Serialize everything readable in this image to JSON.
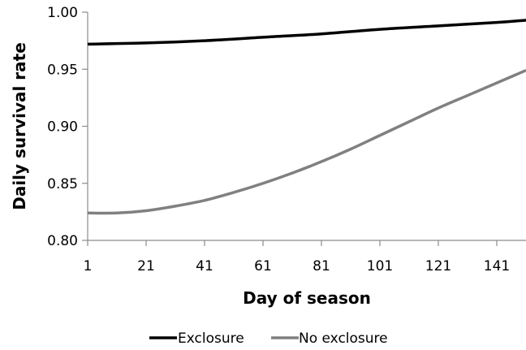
{
  "chart_data": {
    "type": "line",
    "xlabel": "Day of season",
    "ylabel": "Daily survival rate",
    "xlim": [
      1,
      151
    ],
    "ylim": [
      0.8,
      1.0
    ],
    "x_ticks": [
      1,
      21,
      41,
      61,
      81,
      101,
      121,
      141
    ],
    "y_ticks": [
      "0.80",
      "0.85",
      "0.90",
      "0.95",
      "1.00"
    ],
    "grid": false,
    "legend_position": "bottom-center",
    "series": [
      {
        "name": "Exclosure",
        "color": "#000000",
        "x": [
          1,
          21,
          41,
          61,
          81,
          101,
          121,
          141,
          151
        ],
        "y": [
          0.972,
          0.973,
          0.975,
          0.978,
          0.981,
          0.985,
          0.988,
          0.991,
          0.993
        ]
      },
      {
        "name": "No exclosure",
        "color": "#808080",
        "x": [
          1,
          11,
          21,
          31,
          41,
          51,
          61,
          71,
          81,
          91,
          101,
          111,
          121,
          131,
          141,
          151
        ],
        "y": [
          0.824,
          0.824,
          0.826,
          0.83,
          0.835,
          0.842,
          0.85,
          0.859,
          0.869,
          0.88,
          0.892,
          0.904,
          0.916,
          0.927,
          0.938,
          0.949
        ]
      }
    ]
  }
}
